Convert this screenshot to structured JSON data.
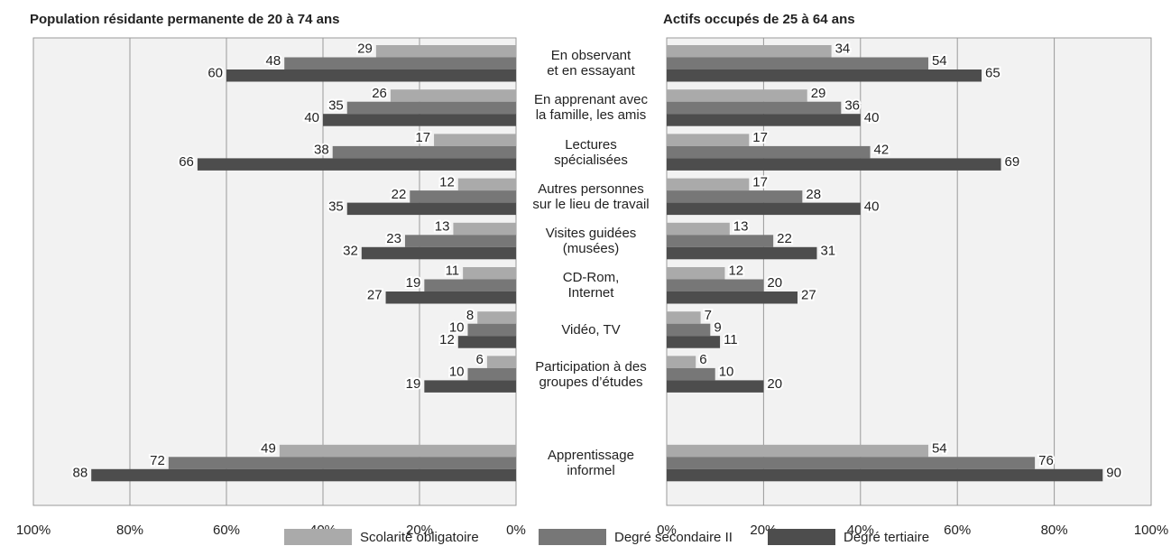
{
  "chart_data": {
    "type": "bar",
    "orientation": "horizontal",
    "categories": [
      "En observant\net en essayant",
      "En apprenant avec\nla famille, les amis",
      "Lectures\nspécialisées",
      "Autres personnes\nsur le lieu de travail",
      "Visites guidées\n(musées)",
      "CD-Rom,\nInternet",
      "Vidéo, TV",
      "Participation à des\ngroupes d’études",
      null,
      "Apprentissage\ninformel"
    ],
    "series": [
      {
        "name": "Scolarité obligatoire",
        "color": "#aaaaaa"
      },
      {
        "name": "Degré secondaire II",
        "color": "#777777"
      },
      {
        "name": "Degré tertiaire",
        "color": "#4d4d4d"
      }
    ],
    "grid": true,
    "panels": [
      {
        "title": "Population résidante permanente de 20 à 74 ans",
        "xlim": [
          100,
          0
        ],
        "xticks": [
          {
            "value": 100,
            "label": "100%"
          },
          {
            "value": 80,
            "label": "80%"
          },
          {
            "value": 60,
            "label": "60%"
          },
          {
            "value": 40,
            "label": "40%"
          },
          {
            "value": 20,
            "label": "20%"
          },
          {
            "value": 0,
            "label": "0%"
          }
        ],
        "values": [
          [
            29,
            26,
            17,
            12,
            13,
            11,
            8,
            6,
            null,
            49
          ],
          [
            48,
            35,
            38,
            22,
            23,
            19,
            10,
            10,
            null,
            72
          ],
          [
            60,
            40,
            66,
            35,
            32,
            27,
            12,
            19,
            null,
            88
          ]
        ]
      },
      {
        "title": "Actifs occupés de 25 à 64 ans",
        "xlim": [
          0,
          100
        ],
        "xticks": [
          {
            "value": 0,
            "label": "0%"
          },
          {
            "value": 20,
            "label": "20%"
          },
          {
            "value": 40,
            "label": "40%"
          },
          {
            "value": 60,
            "label": "60%"
          },
          {
            "value": 80,
            "label": "80%"
          },
          {
            "value": 100,
            "label": "100%"
          }
        ],
        "values": [
          [
            34,
            29,
            17,
            17,
            13,
            12,
            7,
            6,
            null,
            54
          ],
          [
            54,
            36,
            42,
            28,
            22,
            20,
            9,
            10,
            null,
            76
          ],
          [
            65,
            40,
            69,
            40,
            31,
            27,
            11,
            20,
            null,
            90
          ]
        ]
      }
    ]
  }
}
